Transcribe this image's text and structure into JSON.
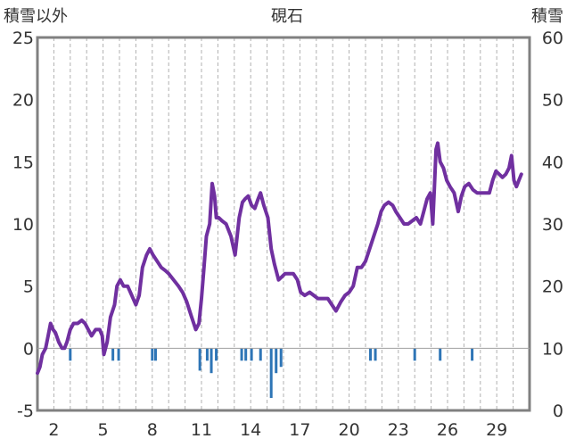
{
  "chart_data": {
    "type": "line",
    "title": "硯石",
    "left_axis_label": "積雪以外",
    "right_axis_label": "積雪",
    "left_ylim": [
      -5,
      25
    ],
    "left_yticks": [
      25,
      20,
      15,
      10,
      5,
      0,
      -5
    ],
    "right_ylim": [
      0,
      60
    ],
    "right_yticks": [
      60,
      50,
      40,
      30,
      20,
      10,
      0
    ],
    "xlim": [
      1,
      31
    ],
    "xticks": [
      "2",
      "5",
      "8",
      "11",
      "14",
      "17",
      "20",
      "23",
      "26",
      "29"
    ],
    "xtick_values": [
      2,
      5,
      8,
      11,
      14,
      17,
      20,
      23,
      26,
      29
    ],
    "grid": "vertical dashed lines at each day",
    "colors": {
      "snow_depth": "#7030a0",
      "precipitation": "#2e75b6",
      "frame": "#808080"
    },
    "series": [
      {
        "type": "line",
        "axis": "right",
        "color": "#7030a0",
        "x": [
          1.0,
          1.15,
          1.3,
          1.5,
          1.65,
          1.8,
          1.95,
          2.1,
          2.3,
          2.5,
          2.65,
          2.8,
          3.0,
          3.2,
          3.45,
          3.7,
          3.9,
          4.1,
          4.3,
          4.55,
          4.8,
          4.95,
          5.05,
          5.25,
          5.45,
          5.7,
          5.85,
          6.05,
          6.25,
          6.5,
          6.75,
          7.0,
          7.2,
          7.4,
          7.65,
          7.85,
          8.05,
          8.3,
          8.55,
          8.8,
          9.0,
          9.3,
          9.6,
          9.85,
          10.1,
          10.4,
          10.65,
          10.85,
          11.0,
          11.15,
          11.3,
          11.5,
          11.65,
          11.8,
          11.9,
          12.05,
          12.25,
          12.5,
          12.8,
          13.05,
          13.3,
          13.5,
          13.65,
          13.85,
          14.05,
          14.25,
          14.45,
          14.6,
          14.8,
          15.05,
          15.25,
          15.45,
          15.7,
          15.9,
          16.1,
          16.35,
          16.6,
          16.85,
          17.05,
          17.3,
          17.6,
          17.85,
          18.1,
          18.4,
          18.7,
          18.95,
          19.2,
          19.5,
          19.75,
          20.0,
          20.25,
          20.5,
          20.75,
          21.0,
          21.25,
          21.5,
          21.75,
          21.95,
          22.15,
          22.4,
          22.65,
          22.85,
          23.1,
          23.35,
          23.6,
          23.85,
          24.1,
          24.35,
          24.55,
          24.75,
          24.95,
          25.1,
          25.2,
          25.3,
          25.4,
          25.55,
          25.75,
          25.95,
          26.15,
          26.4,
          26.65,
          26.85,
          27.05,
          27.3,
          27.55,
          27.8,
          28.05,
          28.3,
          28.55,
          28.75,
          28.95,
          29.15,
          29.35,
          29.55,
          29.75,
          29.9,
          30.05,
          30.2,
          30.35,
          30.5
        ],
        "y": [
          6.0,
          7.0,
          9.0,
          10.0,
          12.0,
          14.0,
          13.0,
          12.5,
          11.0,
          10.0,
          10.0,
          11.0,
          13.0,
          14.0,
          14.0,
          14.5,
          14.0,
          13.0,
          12.0,
          13.0,
          13.0,
          12.0,
          9.0,
          11.0,
          15.0,
          17.0,
          20.0,
          21.0,
          20.0,
          20.0,
          18.5,
          17.0,
          18.5,
          23.0,
          25.0,
          26.0,
          25.0,
          24.0,
          23.0,
          22.5,
          22.0,
          21.0,
          20.0,
          19.0,
          17.5,
          15.0,
          13.0,
          14.0,
          18.0,
          23.0,
          28.0,
          30.0,
          36.5,
          34.5,
          31.0,
          31.0,
          30.5,
          30.0,
          28.0,
          25.0,
          31.0,
          33.5,
          34.0,
          34.5,
          33.0,
          32.5,
          34.0,
          35.0,
          33.0,
          31.0,
          26.0,
          23.5,
          21.0,
          21.5,
          22.0,
          22.0,
          22.0,
          21.0,
          19.0,
          18.5,
          19.0,
          18.5,
          18.0,
          18.0,
          18.0,
          17.0,
          16.0,
          17.5,
          18.5,
          19.0,
          20.0,
          23.0,
          23.0,
          24.0,
          26.0,
          28.0,
          30.0,
          32.0,
          33.0,
          33.5,
          33.0,
          32.0,
          31.0,
          30.0,
          30.0,
          30.5,
          31.0,
          30.0,
          32.0,
          34.0,
          35.0,
          30.0,
          36.0,
          42.0,
          43.0,
          40.0,
          39.0,
          37.0,
          36.0,
          35.0,
          32.0,
          34.5,
          36.0,
          36.5,
          35.5,
          35.0,
          35.0,
          35.0,
          35.0,
          37.0,
          38.5,
          38.0,
          37.5,
          38.0,
          39.0,
          41.0,
          37.0,
          36.0,
          37.0,
          38.0
        ]
      },
      {
        "type": "bar",
        "axis": "left",
        "color": "#2e75b6",
        "x": [
          3.0,
          5.6,
          5.95,
          8.0,
          8.2,
          10.9,
          11.35,
          11.6,
          11.9,
          13.45,
          13.7,
          14.05,
          14.6,
          15.25,
          15.55,
          15.85,
          21.3,
          21.6,
          24.0,
          25.55,
          27.5
        ],
        "y": [
          -1.0,
          -1.0,
          -1.0,
          -1.0,
          -1.0,
          -1.8,
          -1.0,
          -2.0,
          -1.0,
          -1.0,
          -1.0,
          -1.0,
          -1.0,
          -4.0,
          -2.0,
          -1.5,
          -1.0,
          -1.0,
          -1.0,
          -1.0,
          -1.0
        ]
      }
    ]
  }
}
